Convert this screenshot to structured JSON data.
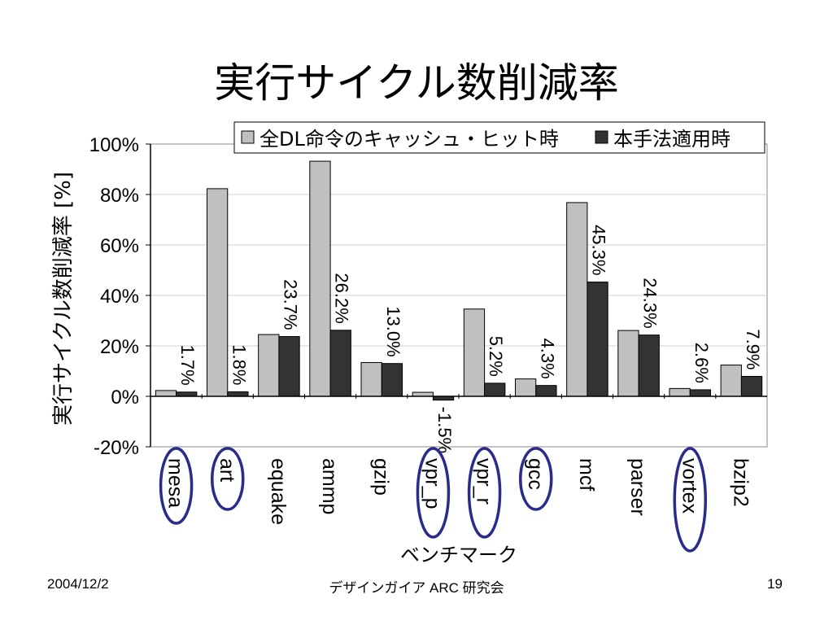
{
  "slide": {
    "title": "実行サイクル数削減率",
    "footer_date": "2004/12/2",
    "footer_center": "デザインガイア ARC 研究会",
    "page_number": "19"
  },
  "colors": {
    "series1": "#c0c0c0",
    "series2": "#333333",
    "highlight_ellipse": "#2b2b8c",
    "grid": "#d0d0d0"
  },
  "chart_data": {
    "type": "bar",
    "ylabel": "実行サイクル数削減率 [%]",
    "xlabel": "ベンチマーク",
    "ylim": [
      -20,
      100
    ],
    "yticks": [
      -20,
      0,
      20,
      40,
      60,
      80,
      100
    ],
    "ytick_labels": [
      "-20%",
      "0%",
      "20%",
      "40%",
      "60%",
      "80%",
      "100%"
    ],
    "grid": true,
    "legend_position": "top-right",
    "categories": [
      "mesa",
      "art",
      "equake",
      "ammp",
      "gzip",
      "vpr_p",
      "vpr_r",
      "gcc",
      "mcf",
      "parser",
      "vortex",
      "bzip2"
    ],
    "highlighted_categories": [
      "mesa",
      "art",
      "vpr_p",
      "vpr_r",
      "gcc",
      "vortex"
    ],
    "series": [
      {
        "name": "全DL命令のキャッシュ・ヒット時",
        "values": [
          2.3,
          82.3,
          24.5,
          93.2,
          13.4,
          1.6,
          34.6,
          6.9,
          76.8,
          26.1,
          3.1,
          12.4
        ]
      },
      {
        "name": "本手法適用時",
        "values": [
          1.7,
          1.8,
          23.7,
          26.2,
          13.0,
          -1.5,
          5.2,
          4.3,
          45.3,
          24.3,
          2.6,
          7.9
        ],
        "data_labels": [
          "1.7%",
          "1.8%",
          "23.7%",
          "26.2%",
          "13.0%",
          "-1.5%",
          "5.2%",
          "4.3%",
          "45.3%",
          "24.3%",
          "2.6%",
          "7.9%"
        ]
      }
    ]
  }
}
